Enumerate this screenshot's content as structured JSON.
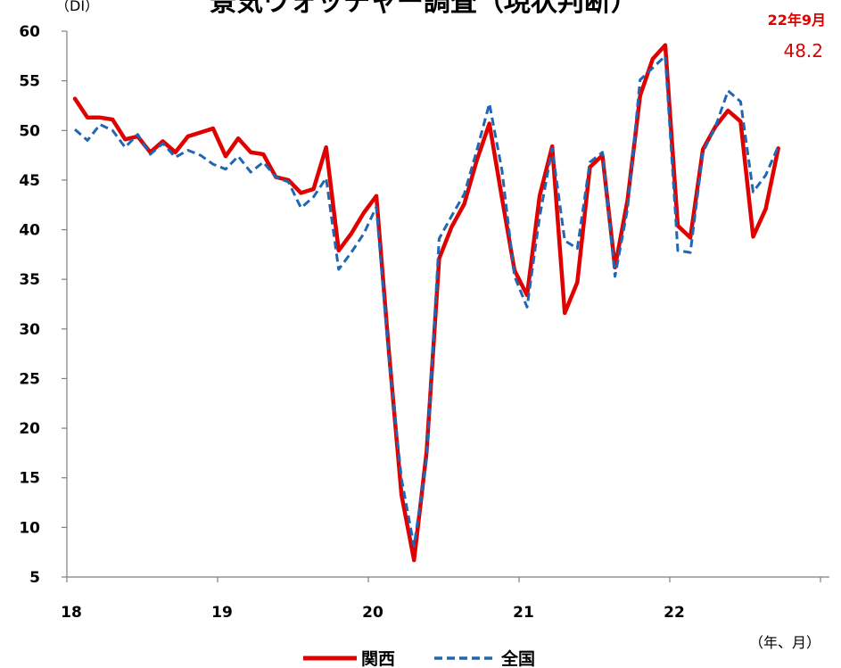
{
  "chart_data": {
    "type": "line",
    "title": "景気ウォッチャー調査（現状判断）",
    "ylabel": "（DI）",
    "xlabel": "（年、月）",
    "ylim": [
      5,
      60
    ],
    "ytick_step": 5,
    "x_start": "2018-01",
    "x_range": [
      "2018-01",
      "2022-09"
    ],
    "xtick_labels": [
      "18",
      "19",
      "20",
      "21",
      "22"
    ],
    "grid": false,
    "legend_position": "bottom",
    "annotation": {
      "date_label": "22年9月",
      "value_label": "48.2",
      "color": "#e00000"
    },
    "series": [
      {
        "name": "関西",
        "color": "#e00000",
        "line_style": "solid",
        "values": [
          53.2,
          51.3,
          51.3,
          51.1,
          49.1,
          49.4,
          47.8,
          48.9,
          47.8,
          49.4,
          49.8,
          50.2,
          47.4,
          49.2,
          47.8,
          47.6,
          45.3,
          45.0,
          43.7,
          44.1,
          48.3,
          37.9,
          39.6,
          41.7,
          43.4,
          27.7,
          13.3,
          6.7,
          17.6,
          37.1,
          40.3,
          42.6,
          47.0,
          50.7,
          43.2,
          35.9,
          33.4,
          43.4,
          48.4,
          31.6,
          34.7,
          46.3,
          47.5,
          36.2,
          43.0,
          53.5,
          57.2,
          58.6,
          40.4,
          39.2,
          48.1,
          50.4,
          52.0,
          50.9,
          39.3,
          42.1,
          48.2
        ]
      },
      {
        "name": "全国",
        "color": "#1f67b4",
        "line_style": "dashed",
        "values": [
          50.1,
          49.0,
          50.6,
          50.0,
          48.3,
          49.6,
          47.6,
          48.7,
          47.3,
          48.0,
          47.5,
          46.6,
          46.1,
          47.4,
          45.8,
          46.8,
          45.3,
          44.8,
          42.2,
          43.3,
          45.2,
          36.0,
          37.7,
          39.6,
          42.3,
          27.0,
          14.9,
          8.1,
          16.9,
          39.1,
          41.4,
          43.6,
          48.0,
          52.7,
          46.0,
          35.3,
          32.2,
          41.3,
          48.2,
          38.9,
          38.1,
          46.8,
          47.8,
          35.3,
          42.1,
          55.1,
          56.3,
          57.5,
          37.9,
          37.7,
          47.8,
          50.4,
          54.0,
          52.9,
          43.8,
          45.5,
          48.4
        ]
      }
    ]
  }
}
